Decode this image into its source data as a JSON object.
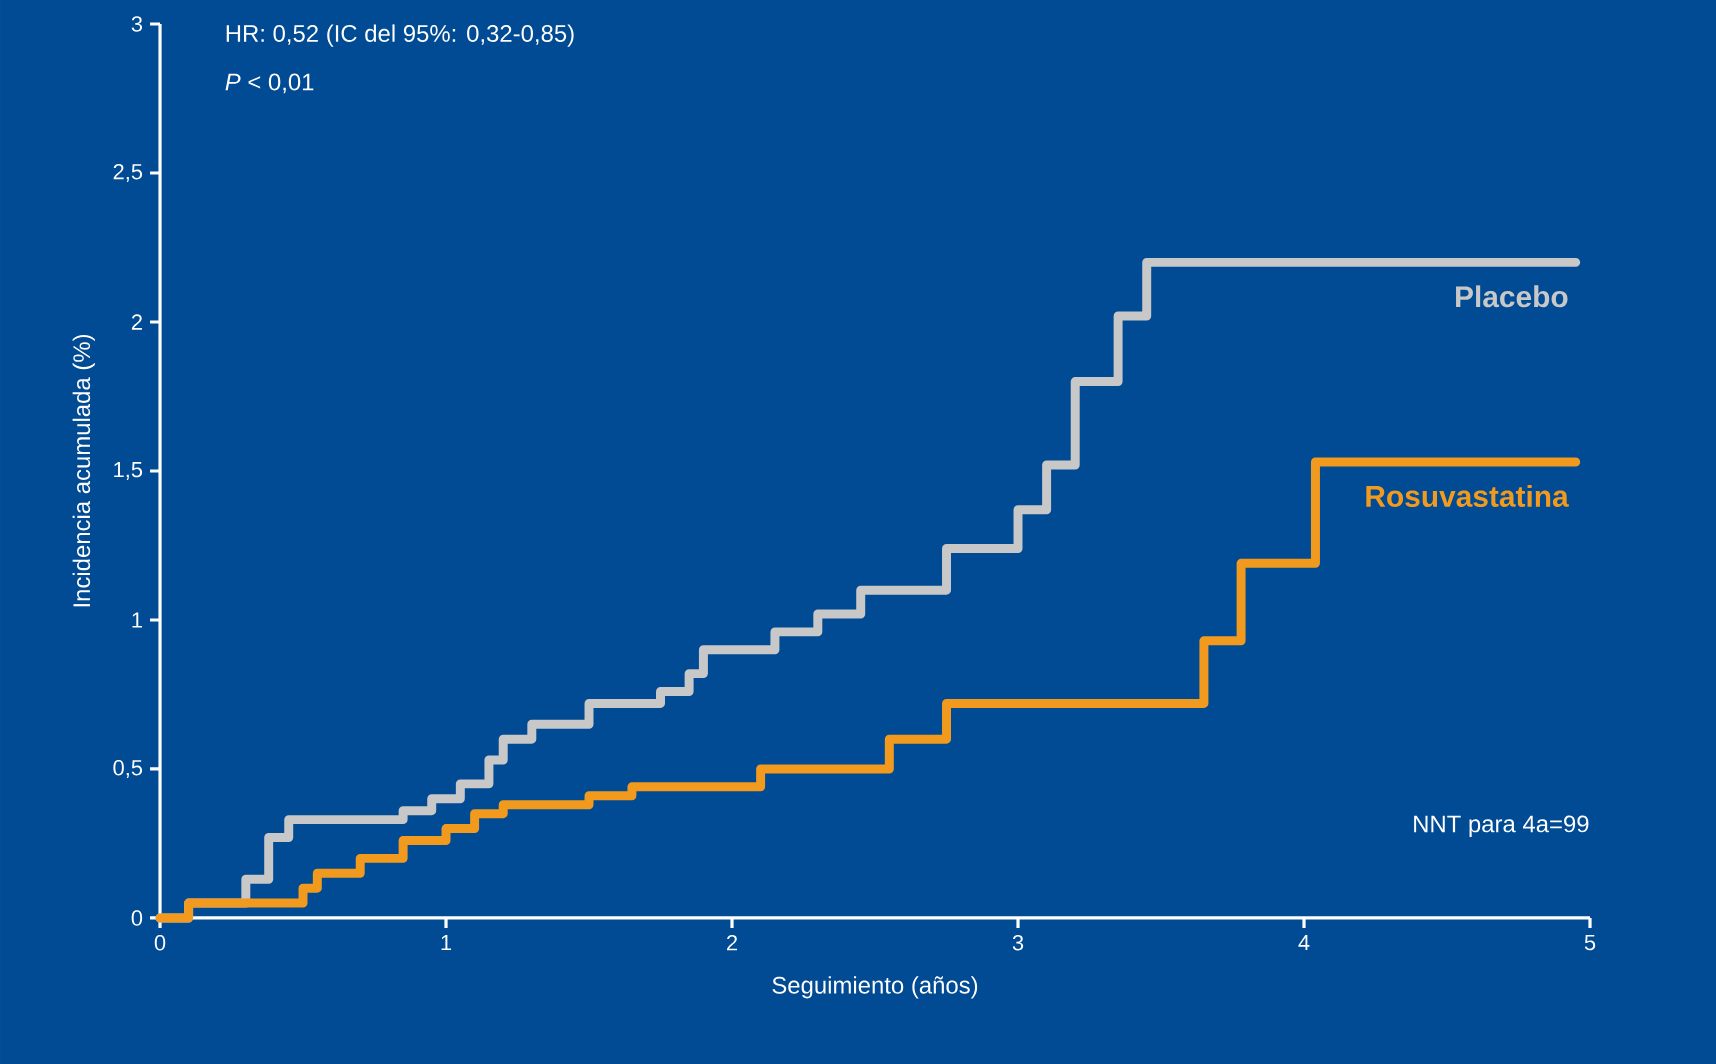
{
  "chart_data": {
    "type": "step",
    "xlabel": "Seguimiento (años)",
    "ylabel": "Incidencia acumulada (%)",
    "annotations": [
      "HR: 0,52 (IC del 95%: 0,32-0,85)",
      "*P* < 0,01",
      "NNT para 4a=99"
    ],
    "xlim": [
      0,
      5
    ],
    "xticks": [
      0,
      1,
      2,
      3,
      4,
      5
    ],
    "ylim": [
      0,
      3
    ],
    "yticks": [
      0,
      {
        "value": 0.5,
        "label": "0,5"
      },
      1,
      {
        "value": 1.5,
        "label": "1,5"
      },
      2,
      {
        "value": 2.5,
        "label": "2,5"
      },
      3
    ],
    "grid": false,
    "marker": "none",
    "line_style": "solid",
    "series": [
      {
        "name": "Placebo",
        "color": "#c8c8c8",
        "x": [
          0,
          0.1,
          0.3,
          0.38,
          0.45,
          0.85,
          0.95,
          1.05,
          1.15,
          1.2,
          1.3,
          1.5,
          1.75,
          1.85,
          1.9,
          2.15,
          2.3,
          2.45,
          2.75,
          3.0,
          3.1,
          3.2,
          3.35,
          3.45,
          4.95
        ],
        "values": [
          0,
          0.05,
          0.13,
          0.27,
          0.33,
          0.36,
          0.4,
          0.45,
          0.53,
          0.6,
          0.65,
          0.72,
          0.76,
          0.82,
          0.9,
          0.96,
          1.02,
          1.1,
          1.24,
          1.37,
          1.52,
          1.8,
          2.02,
          2.2,
          2.2
        ]
      },
      {
        "name": "Rosuvastatina",
        "color": "#f29a1e",
        "x": [
          0,
          0.1,
          0.5,
          0.55,
          0.7,
          0.85,
          1.0,
          1.1,
          1.2,
          1.5,
          1.65,
          2.1,
          2.55,
          2.75,
          3.65,
          3.78,
          4.04,
          4.95
        ],
        "values": [
          0,
          0.05,
          0.1,
          0.15,
          0.2,
          0.26,
          0.3,
          0.35,
          0.38,
          0.41,
          0.44,
          0.5,
          0.6,
          0.72,
          0.93,
          1.19,
          1.53,
          1.53
        ]
      }
    ]
  }
}
